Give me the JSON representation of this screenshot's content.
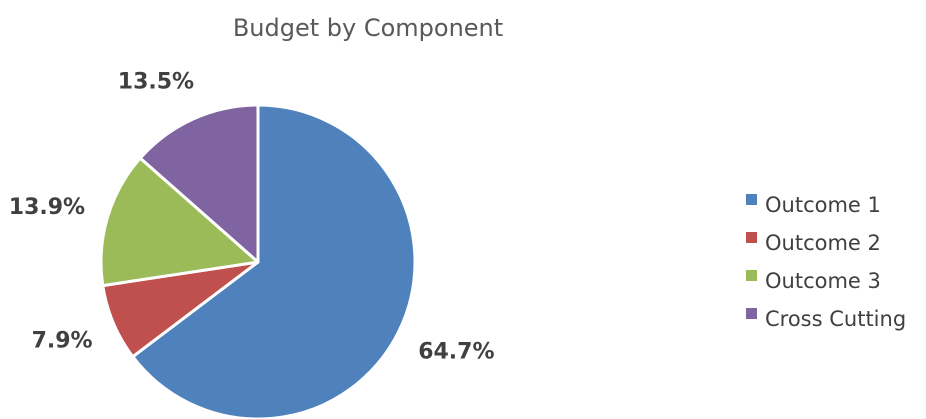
{
  "chart_data": {
    "type": "pie",
    "title": "Budget by Component",
    "categories": [
      "Outcome 1",
      "Outcome 2",
      "Outcome 3",
      "Cross Cutting"
    ],
    "values": [
      64.7,
      7.9,
      13.9,
      13.5
    ],
    "value_labels": [
      "64.7%",
      "7.9%",
      "13.9%",
      "13.5%"
    ],
    "colors": [
      "#4F81BD",
      "#C0504D",
      "#9BBB59",
      "#8064A2"
    ],
    "start_angle": "12 o'clock",
    "direction": "clockwise",
    "legend_position": "right"
  }
}
